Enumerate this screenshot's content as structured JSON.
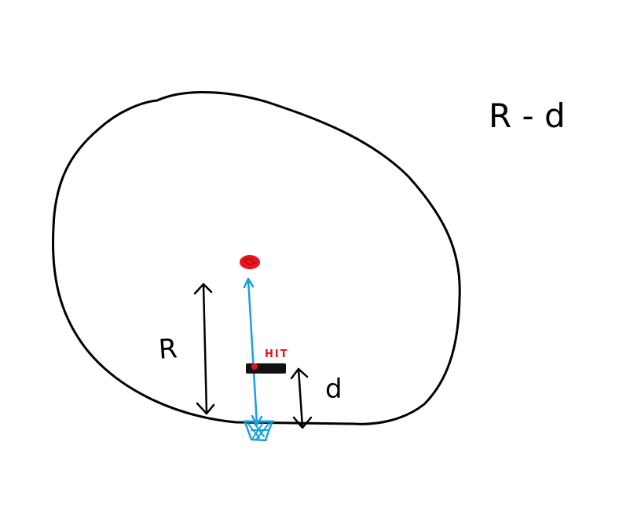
{
  "labels": {
    "formula": "R - d",
    "radius": "R",
    "distance": "d",
    "hit": "HIT"
  },
  "colors": {
    "ink": "#000000",
    "ball": "#e8141e",
    "trajectory": "#1a9fde",
    "hit_text": "#e8141e",
    "background": "#ffffff"
  },
  "icons": {
    "ball": "ball-icon",
    "hoop": "basketball-hoop-icon",
    "blocker": "blocker-bar"
  }
}
